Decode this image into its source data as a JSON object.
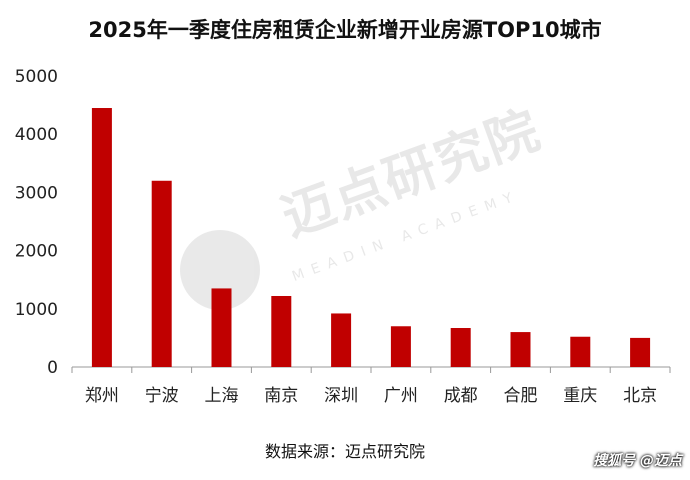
{
  "chart_data": {
    "type": "bar",
    "title": "2025年一季度住房租赁企业新增开业房源TOP10城市",
    "categories": [
      "郑州",
      "宁波",
      "上海",
      "南京",
      "深圳",
      "广州",
      "成都",
      "合肥",
      "重庆",
      "北京"
    ],
    "values": [
      4450,
      3200,
      1350,
      1220,
      920,
      700,
      670,
      600,
      520,
      500
    ],
    "ylim": [
      0,
      5000
    ],
    "yticks": [
      "0",
      "1000",
      "2000",
      "3000",
      "4000",
      "5000"
    ],
    "xlabel": "",
    "ylabel": "",
    "grid": false,
    "bar_color": "#c00000"
  },
  "source": "数据来源：迈点研究院",
  "watermark": {
    "zh": "迈点研究院",
    "en": "MEADIN ACADEMY"
  },
  "footer": "搜狐号 @迈点"
}
